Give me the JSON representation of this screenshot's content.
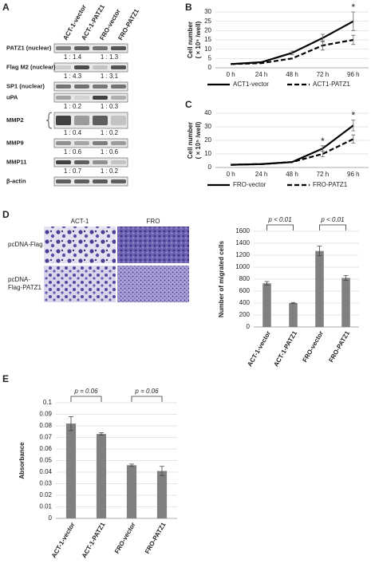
{
  "panel_letters": [
    "A",
    "B",
    "C",
    "D",
    "E"
  ],
  "blot": {
    "columns": [
      "ACT-1-vector",
      "ACT-1-PATZ1",
      "FRO-vector",
      "FRO-PATZ1"
    ],
    "rows": [
      {
        "label": "PATZ1 (nuclear)",
        "ratios": [
          "1 : 1.4",
          "1 : 1.3"
        ]
      },
      {
        "label": "Flag M2 (nuclear)",
        "ratios": [
          "1 : 4.3",
          "1 : 3.1"
        ]
      },
      {
        "label": "SP1 (nuclear)"
      },
      {
        "label": "uPA",
        "ratios": [
          "1 : 0.2",
          "1 : 0.3"
        ]
      },
      {
        "label": "MMP2",
        "ratios": [
          "1 : 0.4",
          "1 : 0.2"
        ]
      },
      {
        "label": "MMP9",
        "ratios": [
          "1 : 0.6",
          "1 : 0.6"
        ]
      },
      {
        "label": "MMP11",
        "ratios": [
          "1 : 0.7",
          "1 : 0.2"
        ]
      },
      {
        "label": "β-actin"
      }
    ]
  },
  "micrographs": {
    "columns": [
      "ACT-1",
      "FRO"
    ],
    "rows": [
      [
        "pcDNA-Flag"
      ],
      [
        "pcDNA-",
        "Flag-PATZ1"
      ]
    ]
  },
  "chart_data": [
    {
      "type": "line",
      "ylabel": [
        "Cell number",
        "( × 10⁵ /well)"
      ],
      "categories": [
        "0 h",
        "24 h",
        "48 h",
        "72 h",
        "96 h"
      ],
      "series": [
        {
          "name": "ACT1-vector",
          "color": "#000000",
          "line_style": "solid",
          "values": [
            2,
            3,
            8,
            16,
            25
          ],
          "errors": [
            null,
            null,
            1,
            2,
            5
          ]
        },
        {
          "name": "ACT1-PATZ1",
          "color": "#000000",
          "line_style": "dashed",
          "values": [
            2,
            2.5,
            5,
            12,
            15
          ],
          "errors": [
            null,
            null,
            null,
            2.5,
            2.5
          ]
        }
      ],
      "significance": [
        null,
        null,
        null,
        null,
        "*"
      ],
      "ylim": [
        0,
        30
      ],
      "yticks": [
        0,
        5,
        10,
        15,
        20,
        25,
        30
      ],
      "grid": true
    },
    {
      "type": "line",
      "ylabel": [
        "Cell number",
        "( × 10⁵ /well)"
      ],
      "categories": [
        "0 h",
        "24 h",
        "48 h",
        "72 h",
        "96 h"
      ],
      "series": [
        {
          "name": "FRO-vector",
          "color": "#000000",
          "line_style": "solid",
          "values": [
            2,
            2.5,
            4,
            14,
            31
          ],
          "errors": [
            null,
            null,
            null,
            2,
            4
          ]
        },
        {
          "name": "FRO-PATZ1",
          "color": "#000000",
          "line_style": "dashed",
          "values": [
            2,
            2.5,
            4,
            10,
            21
          ],
          "errors": [
            null,
            null,
            null,
            2,
            3
          ]
        }
      ],
      "significance": [
        null,
        null,
        null,
        "*",
        "*"
      ],
      "ylim": [
        0,
        40
      ],
      "yticks": [
        0,
        10,
        20,
        30,
        40
      ],
      "grid": true
    },
    {
      "type": "bar",
      "ylabel": [
        "Number of migrated cells"
      ],
      "categories": [
        "ACT-1-vector",
        "ACT-1-PATZ1",
        "FRO-vector",
        "FRO-PATZ1"
      ],
      "values": [
        730,
        400,
        1270,
        820
      ],
      "errors": [
        30,
        10,
        80,
        40
      ],
      "color": "#808080",
      "annotations": [
        "p < 0.01",
        "p < 0.01"
      ],
      "ylim": [
        0,
        1600
      ],
      "yticks": [
        0,
        200,
        400,
        600,
        800,
        1000,
        1200,
        1400,
        1600
      ],
      "grid": true
    },
    {
      "type": "bar",
      "ylabel": [
        "Absorbance"
      ],
      "categories": [
        "ACT-1-vector",
        "ACT-1-PATZ1",
        "FRO-vector",
        "FRO-PATZ1"
      ],
      "values": [
        0.082,
        0.073,
        0.046,
        0.041
      ],
      "errors": [
        0.006,
        0.001,
        0.001,
        0.004
      ],
      "color": "#808080",
      "annotations": [
        "p = 0.06",
        "p = 0.06"
      ],
      "ylim": [
        0,
        0.1
      ],
      "yticks": [
        0,
        0.01,
        0.02,
        0.03,
        0.04,
        0.05,
        0.06,
        0.07,
        0.08,
        0.09,
        0.1
      ],
      "grid": true
    }
  ]
}
